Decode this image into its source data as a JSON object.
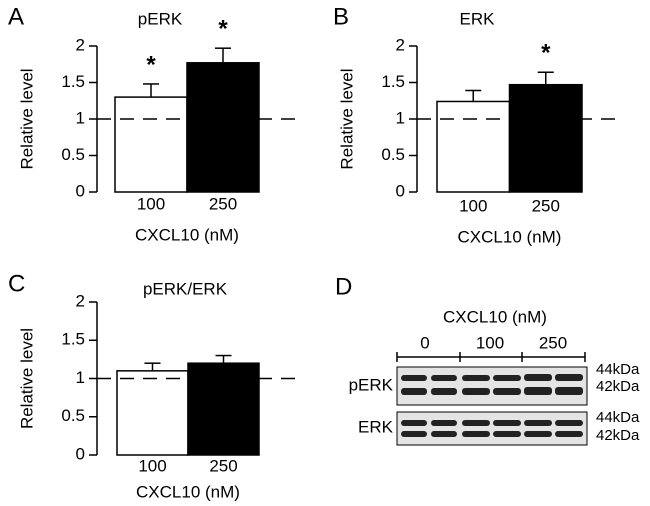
{
  "chart_data": [
    {
      "type": "bar",
      "panel": "A",
      "title": "pERK",
      "ylabel": "Relative level",
      "xlabel": "CXCL10 (nM)",
      "categories": [
        "100",
        "250"
      ],
      "values": [
        1.3,
        1.77
      ],
      "errors": [
        0.18,
        0.2
      ],
      "colors": [
        "#ffffff",
        "#000000"
      ],
      "annotations": [
        "*",
        "*"
      ],
      "ylim": [
        0,
        2
      ],
      "yticks": [
        0,
        0.5,
        1,
        1.5,
        2
      ],
      "reference_line": 1
    },
    {
      "type": "bar",
      "panel": "B",
      "title": "ERK",
      "ylabel": "Relative level",
      "xlabel": "CXCL10 (nM)",
      "categories": [
        "100",
        "250"
      ],
      "values": [
        1.24,
        1.47
      ],
      "errors": [
        0.15,
        0.17
      ],
      "colors": [
        "#ffffff",
        "#000000"
      ],
      "annotations": [
        null,
        "*"
      ],
      "ylim": [
        0,
        2
      ],
      "yticks": [
        0,
        0.5,
        1,
        1.5,
        2
      ],
      "reference_line": 1
    },
    {
      "type": "bar",
      "panel": "C",
      "title": "pERK/ERK",
      "ylabel": "Relative level",
      "xlabel": "CXCL10 (nM)",
      "categories": [
        "100",
        "250"
      ],
      "values": [
        1.1,
        1.2
      ],
      "errors": [
        0.1,
        0.1
      ],
      "colors": [
        "#ffffff",
        "#000000"
      ],
      "annotations": [
        null,
        null
      ],
      "ylim": [
        0,
        2
      ],
      "yticks": [
        0,
        0.5,
        1,
        1.5,
        2
      ],
      "reference_line": 1
    }
  ],
  "blot": {
    "panel": "D",
    "title": "CXCL10 (nM)",
    "lanes": [
      "0",
      "100",
      "250"
    ],
    "rows": [
      "pERK",
      "ERK"
    ],
    "sizes": [
      [
        "44kDa",
        "42kDa"
      ],
      [
        "44kDa",
        "42kDa"
      ]
    ]
  }
}
